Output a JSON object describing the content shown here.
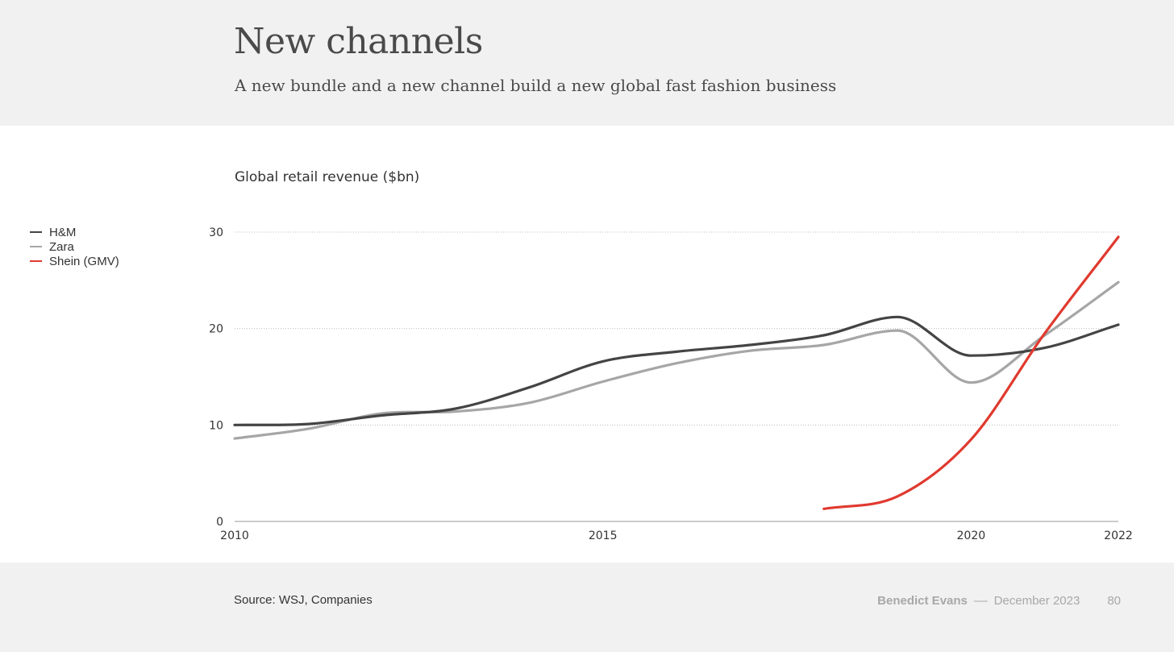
{
  "header": {
    "title": "New channels",
    "subtitle": "A new bundle and a new channel build a new global fast fashion business"
  },
  "footer": {
    "source": "Source: WSJ, Companies",
    "author": "Benedict Evans",
    "separator": "––",
    "date": "December 2023",
    "page": "80"
  },
  "chart_data": {
    "type": "line",
    "title": "Global retail revenue ($bn)",
    "xlabel": "",
    "ylabel": "",
    "xlim": [
      2010,
      2022
    ],
    "ylim": [
      0,
      30
    ],
    "x_ticks": [
      2010,
      2015,
      2020,
      2022
    ],
    "y_ticks": [
      0,
      10,
      20,
      30
    ],
    "grid": "horizontal dotted",
    "legend_position": "left",
    "series": [
      {
        "name": "H&M",
        "color": "#444444",
        "x": [
          2010,
          2011,
          2012,
          2013,
          2014,
          2015,
          2016,
          2017,
          2018,
          2019,
          2020,
          2021,
          2022
        ],
        "values": [
          10.0,
          10.1,
          11.0,
          11.7,
          13.9,
          16.6,
          17.6,
          18.3,
          19.3,
          21.2,
          17.2,
          18.0,
          20.4
        ]
      },
      {
        "name": "Zara",
        "color": "#a6a6a6",
        "x": [
          2010,
          2011,
          2012,
          2013,
          2014,
          2015,
          2016,
          2017,
          2018,
          2019,
          2020,
          2021,
          2022
        ],
        "values": [
          8.6,
          9.6,
          11.2,
          11.4,
          12.3,
          14.5,
          16.4,
          17.7,
          18.3,
          19.8,
          14.4,
          19.3,
          24.8
        ]
      },
      {
        "name": "Shein (GMV)",
        "color": "#e03a2f",
        "x": [
          2018,
          2019,
          2020,
          2021,
          2022
        ],
        "values": [
          1.3,
          2.6,
          8.5,
          19.5,
          29.5
        ]
      }
    ]
  }
}
